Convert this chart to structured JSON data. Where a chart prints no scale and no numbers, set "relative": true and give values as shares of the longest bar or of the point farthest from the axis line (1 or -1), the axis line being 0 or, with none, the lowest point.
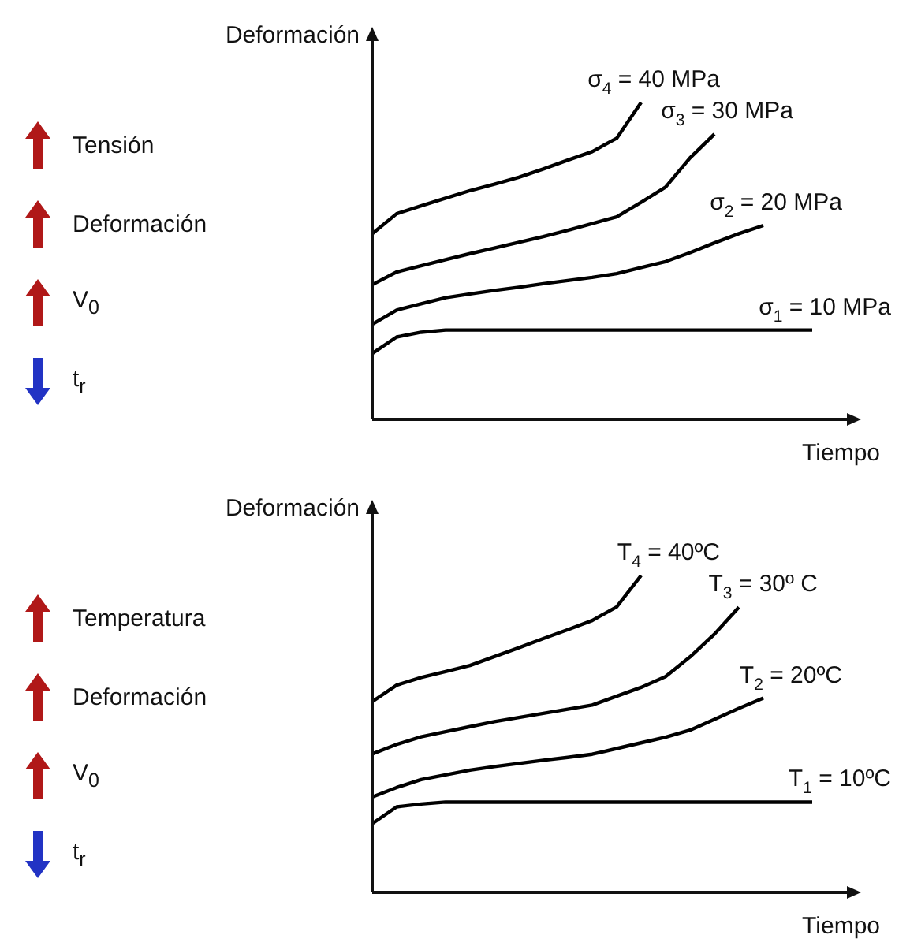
{
  "chart_data": [
    {
      "type": "line",
      "relative": true,
      "xlabel": "Tiempo",
      "ylabel": "Deformación",
      "annotations": [
        "Tensión",
        "Deformación",
        "V$_{0}$",
        "t$_{r}$"
      ],
      "categories": [
        null,
        null,
        null,
        null,
        null,
        null,
        null,
        null,
        null,
        null,
        null,
        null,
        null,
        null,
        null,
        null,
        null,
        null,
        null,
        null,
        null
      ],
      "series": [
        {
          "name": "σ$_{4}$ = 40 MPa",
          "color": "#000000",
          "values": [
            0.586,
            0.649,
            0.674,
            0.698,
            0.722,
            0.742,
            0.764,
            0.79,
            0.818,
            0.845,
            0.887,
            1,
            null,
            null,
            null,
            null,
            null,
            null,
            null,
            null,
            null
          ]
        },
        {
          "name": "σ$_{3}$ = 30 MPa",
          "color": "#000000",
          "values": [
            0.425,
            0.465,
            0.485,
            0.504,
            0.523,
            0.541,
            0.559,
            0.577,
            0.597,
            0.618,
            0.639,
            0.685,
            0.733,
            0.825,
            0.9,
            null,
            null,
            null,
            null,
            null,
            null
          ]
        },
        {
          "name": "σ$_{2}$ = 20 MPa",
          "color": "#000000",
          "values": [
            0.3,
            0.345,
            0.365,
            0.384,
            0.396,
            0.407,
            0.417,
            0.428,
            0.438,
            0.448,
            0.46,
            0.479,
            0.498,
            0.526,
            0.557,
            0.586,
            0.612,
            null,
            null,
            null,
            null
          ]
        },
        {
          "name": "σ$_{1}$ = 10 MPa",
          "color": "#000000",
          "values": [
            0.208,
            0.26,
            0.275,
            0.282,
            0.282,
            0.282,
            0.282,
            0.282,
            0.282,
            0.282,
            0.282,
            0.282,
            0.282,
            0.282,
            0.282,
            0.282,
            0.282,
            0.282,
            0.282,
            null,
            null
          ]
        }
      ]
    },
    {
      "type": "line",
      "relative": true,
      "xlabel": "Tiempo",
      "ylabel": "Deformación",
      "annotations": [
        "Temperatura",
        "Deformación",
        "V$_{0}$",
        "t$_{r}$"
      ],
      "categories": [
        null,
        null,
        null,
        null,
        null,
        null,
        null,
        null,
        null,
        null,
        null,
        null,
        null,
        null,
        null,
        null,
        null,
        null,
        null,
        null,
        null
      ],
      "series": [
        {
          "name": "T$_{4}$ = 40ºC",
          "color": "#000000",
          "values": [
            0.602,
            0.654,
            0.678,
            0.697,
            0.716,
            0.744,
            0.772,
            0.801,
            0.829,
            0.858,
            0.901,
            1,
            null,
            null,
            null,
            null,
            null,
            null,
            null,
            null,
            null
          ]
        },
        {
          "name": "T$_{3}$ = 30º C",
          "color": "#000000",
          "values": [
            0.437,
            0.467,
            0.491,
            0.507,
            0.523,
            0.539,
            0.552,
            0.565,
            0.578,
            0.591,
            0.619,
            0.647,
            0.681,
            0.743,
            0.815,
            0.9,
            null,
            null,
            null,
            null,
            null
          ]
        },
        {
          "name": "T$_{2}$ = 20ºC",
          "color": "#000000",
          "values": [
            0.301,
            0.331,
            0.356,
            0.371,
            0.386,
            0.397,
            0.407,
            0.417,
            0.426,
            0.436,
            0.454,
            0.472,
            0.49,
            0.512,
            0.546,
            0.581,
            0.613,
            null,
            null,
            null,
            null
          ]
        },
        {
          "name": "T$_{1}$ = 10ºC",
          "color": "#000000",
          "values": [
            0.217,
            0.27,
            0.279,
            0.285,
            0.285,
            0.285,
            0.285,
            0.285,
            0.285,
            0.285,
            0.285,
            0.285,
            0.285,
            0.285,
            0.285,
            0.285,
            0.285,
            0.285,
            0.285,
            null,
            null
          ]
        }
      ]
    }
  ]
}
